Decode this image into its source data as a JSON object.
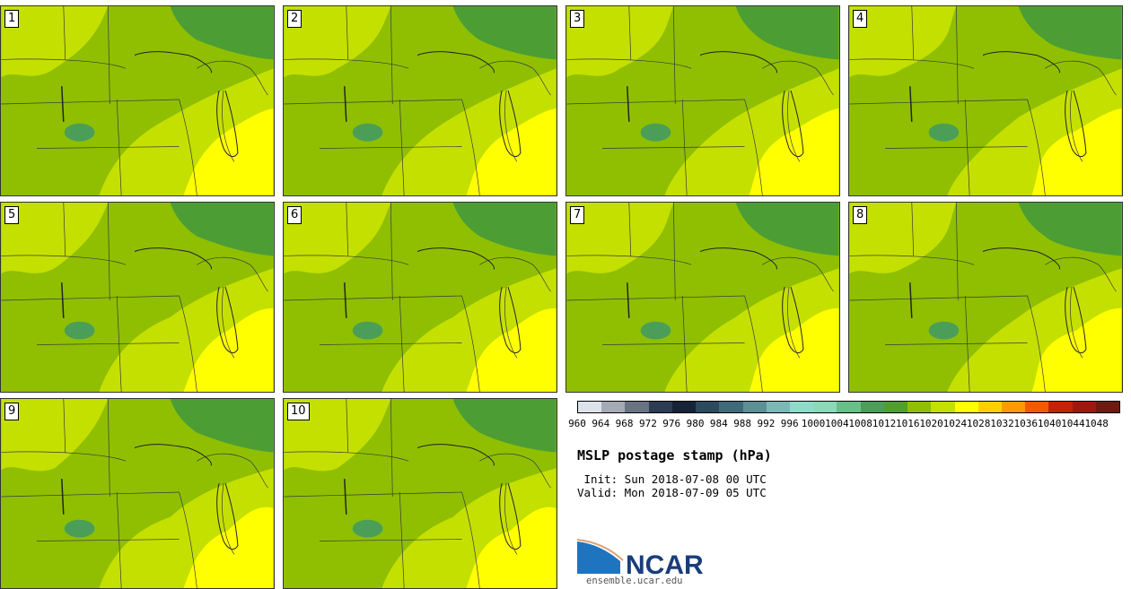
{
  "panels": [
    {
      "label": "1"
    },
    {
      "label": "2"
    },
    {
      "label": "3"
    },
    {
      "label": "4"
    },
    {
      "label": "5"
    },
    {
      "label": "6"
    },
    {
      "label": "7"
    },
    {
      "label": "8"
    },
    {
      "label": "9"
    },
    {
      "label": "10"
    }
  ],
  "colorbar": {
    "ticks": [
      "960",
      "964",
      "968",
      "972",
      "976",
      "980",
      "984",
      "988",
      "992",
      "996",
      "1000",
      "1004",
      "1008",
      "1012",
      "1016",
      "1020",
      "1024",
      "1028",
      "1032",
      "1036",
      "1040",
      "1044",
      "1048"
    ],
    "colors": [
      "#dde3ea",
      "#a4aab6",
      "#6a7384",
      "#2c3c52",
      "#152436",
      "#2b4a5e",
      "#3f6a7a",
      "#5c8f96",
      "#7ab8b6",
      "#8ddccb",
      "#8ad9b8",
      "#66c088",
      "#4a9e58",
      "#4f9f30",
      "#8fbf00",
      "#c4e000",
      "#ffff00",
      "#ffd000",
      "#ff9a00",
      "#f25a00",
      "#c42200",
      "#9a1a0e",
      "#6e1a10"
    ],
    "map_palette": {
      "low_1012": "#4c9e34",
      "mid_1016": "#8fbf00",
      "high_1020": "#c4e000",
      "highest_1024": "#ffff00",
      "lowest_1008": "#4a9e58"
    }
  },
  "title": "MSLP postage stamp (hPa)",
  "init": " Init: Sun 2018-07-08 00 UTC",
  "valid": "Valid: Mon 2018-07-09 05 UTC",
  "logo": {
    "name": "NCAR",
    "url": "ensemble.ucar.edu"
  }
}
